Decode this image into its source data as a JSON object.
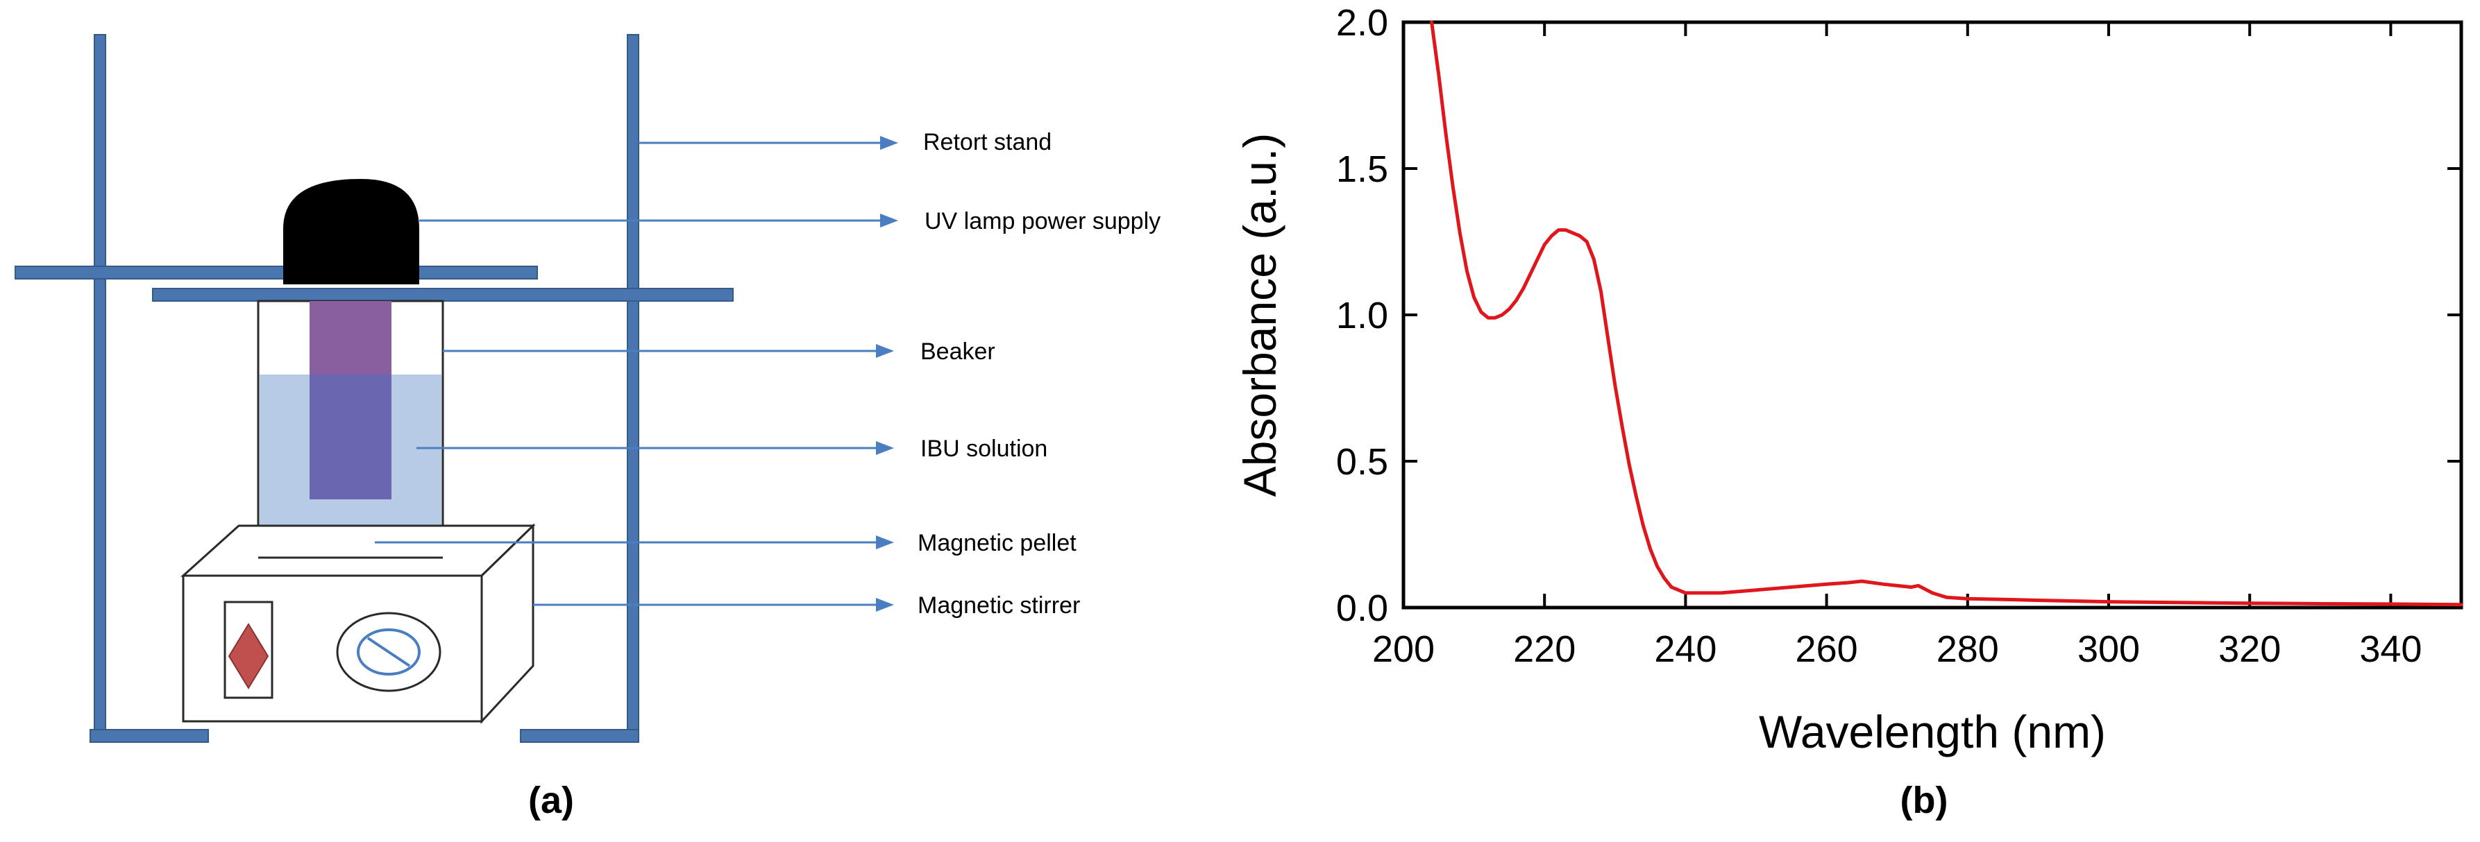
{
  "diagram": {
    "caption": "(a)",
    "labels": [
      {
        "id": "retort-stand",
        "text": "Retort stand"
      },
      {
        "id": "uv-lamp",
        "text": "UV lamp power supply"
      },
      {
        "id": "beaker",
        "text": "Beaker"
      },
      {
        "id": "ibu-solution",
        "text": "IBU solution"
      },
      {
        "id": "magnetic-pellet",
        "text": "Magnetic pellet"
      },
      {
        "id": "magnetic-stirrer",
        "text": "Magnetic stirrer"
      }
    ],
    "colors": {
      "stand": "#4a76b0",
      "lamp": "#000000",
      "beaker_outline": "#2a2a2a",
      "solution": "#b7cbe6",
      "uv_light": "#8a5fa0",
      "uv_in_solution": "#6a66b0",
      "pellet": "#b9dd8f",
      "pointer": "#4a7ec0",
      "stirrer_knob": "#c0504d"
    }
  },
  "chart_data": {
    "type": "line",
    "caption": "(b)",
    "xlabel": "Wavelength (nm)",
    "ylabel": "Absorbance (a.u.)",
    "xlim": [
      200,
      350
    ],
    "ylim": [
      0.0,
      2.0
    ],
    "xticks": [
      200,
      220,
      240,
      260,
      280,
      300,
      320,
      340
    ],
    "yticks": [
      0.0,
      0.5,
      1.0,
      1.5,
      2.0
    ],
    "ytick_labels": [
      "0.0",
      "0.5",
      "1.0",
      "1.5",
      "2.0"
    ],
    "grid": false,
    "line_color": "#e0161d",
    "series": [
      {
        "x": [
          204,
          205,
          206,
          207,
          208,
          209,
          210,
          211,
          212,
          213,
          214,
          215,
          216,
          217,
          218,
          219,
          220,
          221,
          222,
          223,
          224,
          225,
          226,
          227,
          228,
          229,
          230,
          231,
          232,
          233,
          234,
          235,
          236,
          237,
          238,
          239,
          240,
          242,
          245,
          250,
          255,
          260,
          263,
          265,
          268,
          270,
          272,
          273,
          275,
          277,
          280,
          285,
          290,
          300,
          310,
          320,
          330,
          340,
          350
        ],
        "y": [
          2.0,
          1.82,
          1.62,
          1.44,
          1.28,
          1.15,
          1.06,
          1.01,
          0.99,
          0.99,
          1.0,
          1.02,
          1.05,
          1.09,
          1.14,
          1.19,
          1.24,
          1.27,
          1.29,
          1.29,
          1.28,
          1.27,
          1.25,
          1.19,
          1.08,
          0.92,
          0.76,
          0.62,
          0.49,
          0.38,
          0.28,
          0.2,
          0.14,
          0.1,
          0.07,
          0.06,
          0.05,
          0.05,
          0.05,
          0.06,
          0.07,
          0.08,
          0.085,
          0.09,
          0.08,
          0.075,
          0.07,
          0.075,
          0.05,
          0.035,
          0.03,
          0.028,
          0.025,
          0.02,
          0.017,
          0.015,
          0.013,
          0.012,
          0.01
        ]
      }
    ]
  }
}
